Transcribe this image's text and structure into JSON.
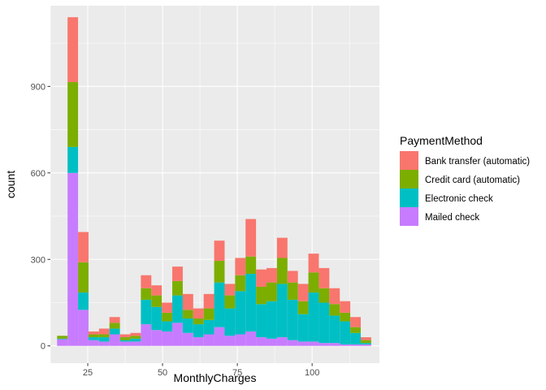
{
  "chart_data": {
    "type": "bar",
    "subtype": "stacked-histogram",
    "title": "",
    "xlabel": "MonthlyCharges",
    "ylabel": "count",
    "xlim": [
      12.5,
      122.5
    ],
    "ylim": [
      -60,
      1180
    ],
    "x_ticks": [
      25,
      50,
      75,
      100
    ],
    "y_ticks": [
      0,
      300,
      600,
      900
    ],
    "grid": true,
    "legend_position": "right",
    "legend_title": "PaymentMethod",
    "bin_width": 3.5,
    "bins": [
      16.5,
      20,
      23.5,
      27,
      30.5,
      34,
      37.5,
      41,
      44.5,
      48,
      51.5,
      55,
      58.5,
      62,
      65.5,
      69,
      72.5,
      76,
      79.5,
      83,
      86.5,
      90,
      93.5,
      97,
      100.5,
      104,
      107.5,
      111,
      114.5,
      118
    ],
    "series": [
      {
        "name": "Mailed check",
        "color": "#C77CFF",
        "values": [
          23,
          600,
          125,
          20,
          15,
          40,
          15,
          15,
          75,
          55,
          50,
          80,
          45,
          30,
          40,
          65,
          35,
          40,
          50,
          30,
          25,
          30,
          20,
          15,
          15,
          10,
          10,
          5,
          5,
          5
        ]
      },
      {
        "name": "Electronic check",
        "color": "#00BFC4",
        "values": [
          2,
          90,
          60,
          10,
          15,
          20,
          5,
          10,
          85,
          80,
          35,
          95,
          50,
          45,
          50,
          155,
          95,
          150,
          200,
          115,
          130,
          185,
          140,
          95,
          170,
          140,
          95,
          80,
          40,
          5
        ]
      },
      {
        "name": "Credit card (automatic)",
        "color": "#7CAE00",
        "values": [
          10,
          225,
          105,
          10,
          10,
          20,
          10,
          10,
          40,
          40,
          30,
          50,
          30,
          20,
          40,
          75,
          45,
          55,
          60,
          60,
          65,
          90,
          60,
          45,
          70,
          50,
          40,
          30,
          20,
          10
        ]
      },
      {
        "name": "Bank transfer (automatic)",
        "color": "#F8766D",
        "values": [
          0,
          225,
          105,
          10,
          20,
          20,
          10,
          10,
          45,
          35,
          35,
          50,
          55,
          35,
          50,
          70,
          40,
          60,
          130,
          60,
          50,
          70,
          40,
          60,
          65,
          70,
          55,
          40,
          35,
          10
        ]
      }
    ]
  }
}
